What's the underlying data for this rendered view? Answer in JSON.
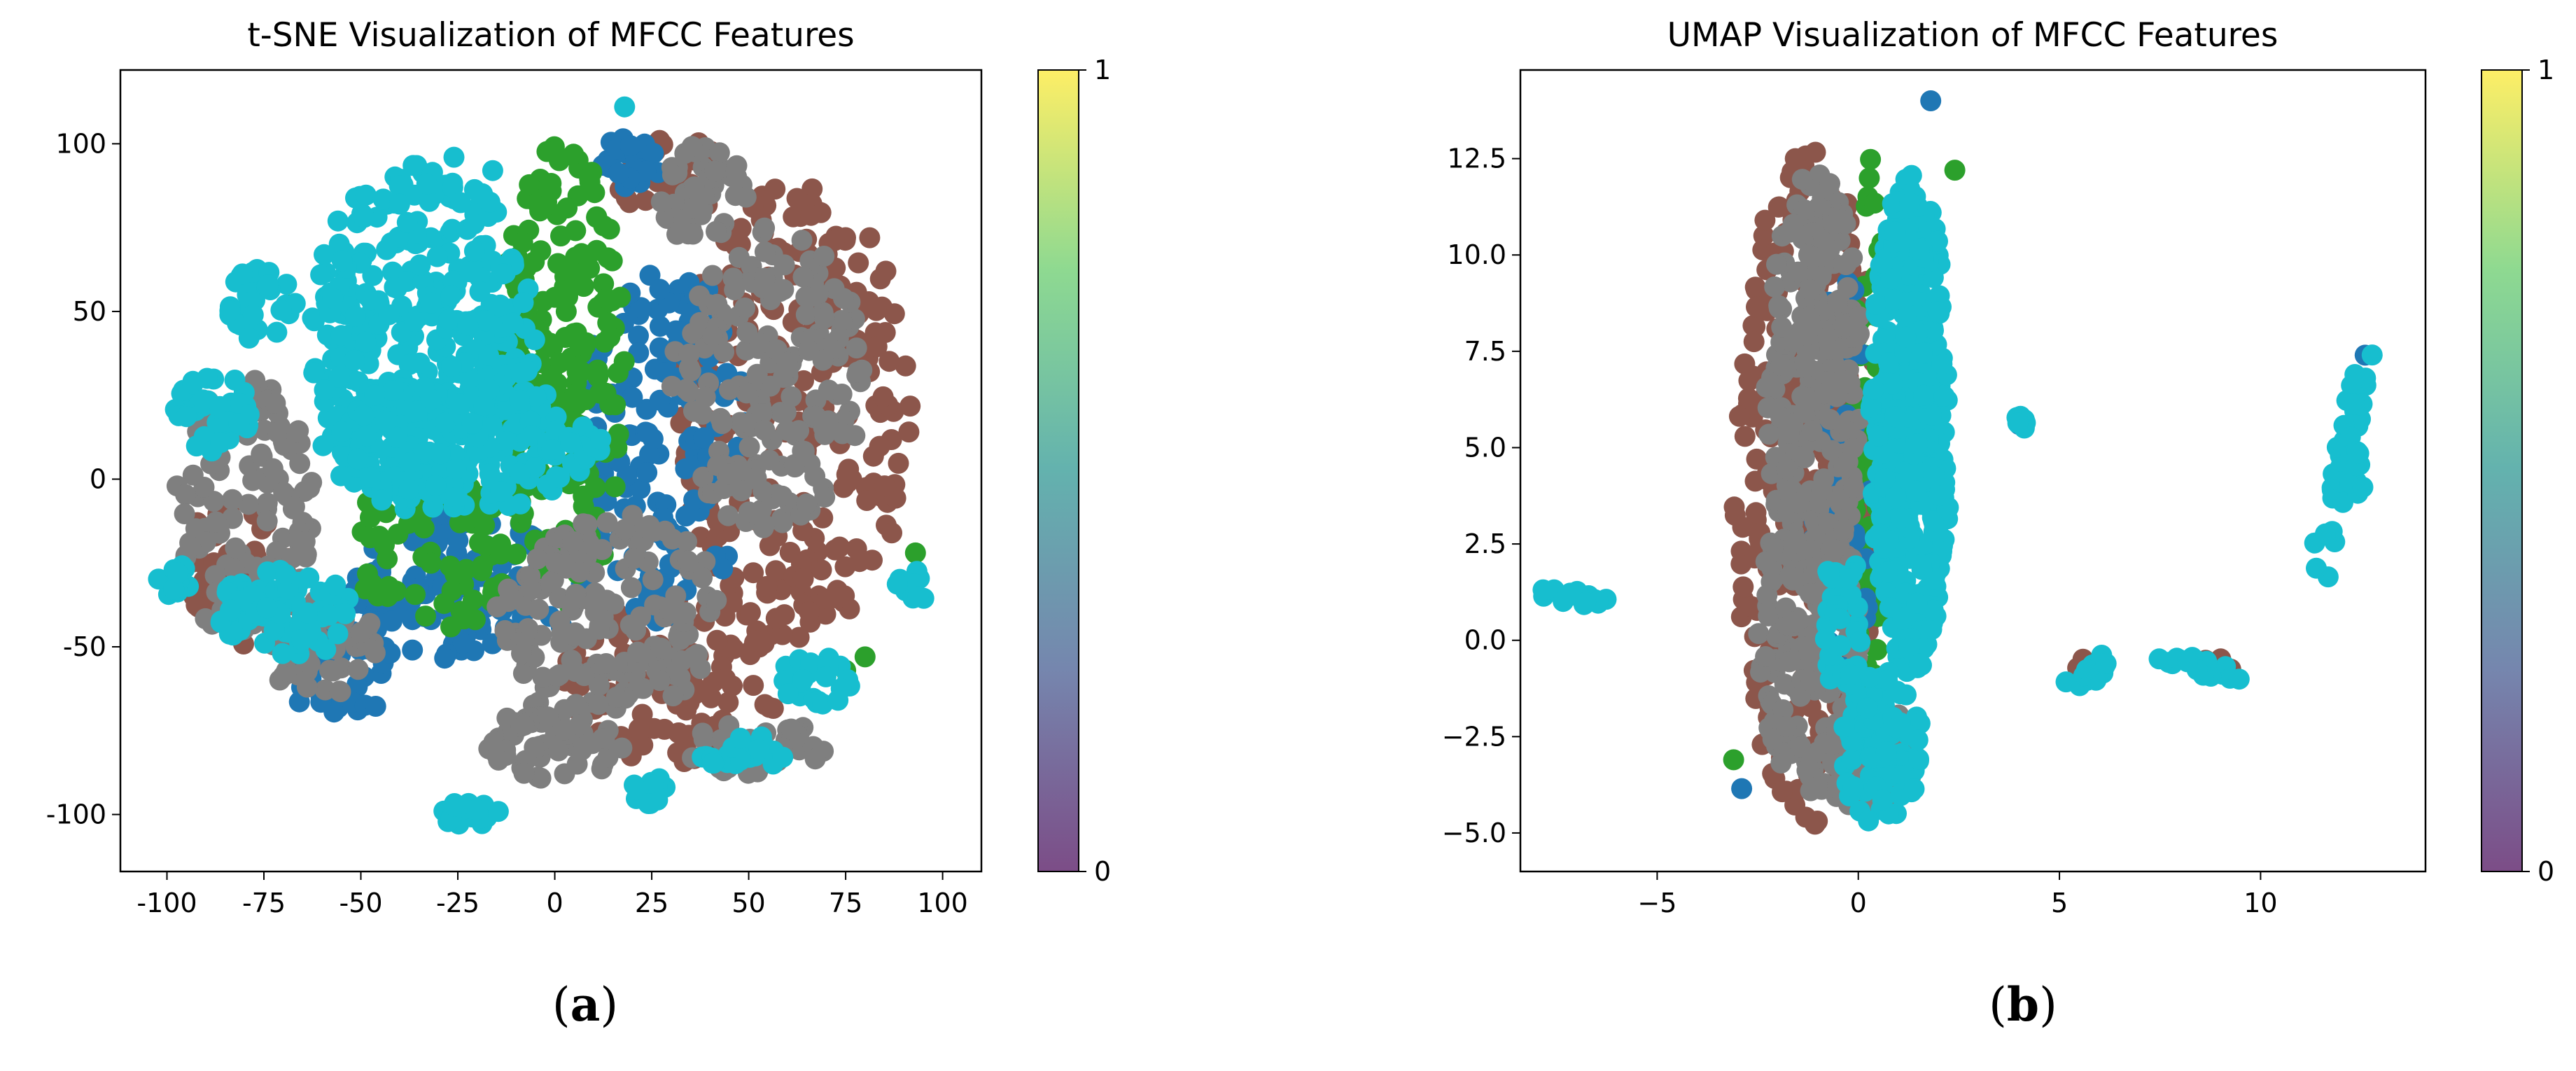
{
  "figure": {
    "panel_a_label": {
      "open": "(",
      "letter": "a",
      "close": ")"
    },
    "panel_b_label": {
      "open": "(",
      "letter": "b",
      "close": ")"
    }
  },
  "colors": {
    "blue": "#1f77b4",
    "green": "#2ca02c",
    "brown": "#8c564b",
    "gray": "#7f7f7f",
    "cyan": "#17becf",
    "viridis": [
      "#440154",
      "#3b528b",
      "#21918c",
      "#5ec962",
      "#fde725"
    ]
  },
  "chart_data": [
    {
      "type": "scatter",
      "title": "t-SNE Visualization of MFCC Features",
      "xlabel": "",
      "ylabel": "",
      "xlim": [
        -112,
        110
      ],
      "ylim": [
        -117,
        122
      ],
      "xticks": [
        -100,
        -75,
        -50,
        -25,
        0,
        25,
        50,
        75,
        100
      ],
      "yticks": [
        -100,
        -50,
        0,
        50,
        100
      ],
      "colorbar": {
        "min": 0,
        "max": 1,
        "ticks": [
          "0",
          "1"
        ],
        "cmap": "viridis",
        "alpha": 0.7
      },
      "series": [
        {
          "name": "class-brown",
          "color": "#8c564b",
          "regions": [
            {
              "type": "ellipse",
              "cx": 62,
              "cy": 20,
              "rx": 30,
              "ry": 68,
              "n": 260
            },
            {
              "type": "ellipse",
              "cx": 30,
              "cy": -60,
              "rx": 28,
              "ry": 25,
              "n": 110
            },
            {
              "type": "ellipse",
              "cx": -82,
              "cy": -28,
              "rx": 14,
              "ry": 22,
              "n": 40
            },
            {
              "type": "ellipse",
              "cx": 30,
              "cy": 90,
              "rx": 14,
              "ry": 12,
              "n": 30
            }
          ]
        },
        {
          "name": "class-blue",
          "color": "#1f77b4",
          "regions": [
            {
              "type": "ellipse",
              "cx": 28,
              "cy": 10,
              "rx": 22,
              "ry": 55,
              "n": 160
            },
            {
              "type": "ellipse",
              "cx": -22,
              "cy": -32,
              "rx": 30,
              "ry": 22,
              "n": 110
            },
            {
              "type": "ellipse",
              "cx": -55,
              "cy": -58,
              "rx": 14,
              "ry": 14,
              "n": 40
            },
            {
              "type": "ellipse",
              "cx": 20,
              "cy": 95,
              "rx": 10,
              "ry": 8,
              "n": 22
            }
          ]
        },
        {
          "name": "class-green",
          "color": "#2ca02c",
          "regions": [
            {
              "type": "ellipse",
              "cx": 2,
              "cy": 30,
              "rx": 16,
              "ry": 70,
              "n": 190
            },
            {
              "type": "ellipse",
              "cx": -30,
              "cy": -20,
              "rx": 22,
              "ry": 25,
              "n": 80
            },
            {
              "type": "points",
              "pts": [
                [
                  -47,
                  41
                ],
                [
                  80,
                  -53
                ],
                [
                  93,
                  -22
                ],
                [
                  -68,
                  52
                ],
                [
                  75,
                  -57
                ]
              ]
            }
          ]
        },
        {
          "name": "class-gray",
          "color": "#7f7f7f",
          "regions": [
            {
              "type": "ellipse",
              "cx": 55,
              "cy": 30,
              "rx": 25,
              "ry": 45,
              "n": 180
            },
            {
              "type": "ellipse",
              "cx": 15,
              "cy": -40,
              "rx": 30,
              "ry": 30,
              "n": 160
            },
            {
              "type": "ellipse",
              "cx": 0,
              "cy": -78,
              "rx": 18,
              "ry": 12,
              "n": 60
            },
            {
              "type": "ellipse",
              "cx": 38,
              "cy": 85,
              "rx": 12,
              "ry": 15,
              "n": 50
            },
            {
              "type": "ellipse",
              "cx": -80,
              "cy": -10,
              "rx": 18,
              "ry": 40,
              "n": 110
            },
            {
              "type": "ellipse",
              "cx": -60,
              "cy": -50,
              "rx": 15,
              "ry": 15,
              "n": 50
            },
            {
              "type": "ellipse",
              "cx": 52,
              "cy": -80,
              "rx": 18,
              "ry": 8,
              "n": 40
            }
          ]
        },
        {
          "name": "class-cyan",
          "color": "#17becf",
          "regions": [
            {
              "type": "ellipse",
              "cx": -35,
              "cy": 42,
              "rx": 30,
              "ry": 52,
              "n": 380
            },
            {
              "type": "ellipse",
              "cx": -25,
              "cy": 10,
              "rx": 35,
              "ry": 20,
              "n": 140
            },
            {
              "type": "ellipse",
              "cx": -70,
              "cy": -40,
              "rx": 18,
              "ry": 14,
              "n": 70
            },
            {
              "type": "ellipse",
              "cx": -88,
              "cy": 20,
              "rx": 10,
              "ry": 12,
              "n": 40
            },
            {
              "type": "ellipse",
              "cx": -75,
              "cy": 52,
              "rx": 10,
              "ry": 12,
              "n": 30
            },
            {
              "type": "ellipse",
              "cx": -22,
              "cy": -100,
              "rx": 8,
              "ry": 4,
              "n": 22
            },
            {
              "type": "ellipse",
              "cx": 25,
              "cy": -93,
              "rx": 6,
              "ry": 4,
              "n": 16
            },
            {
              "type": "ellipse",
              "cx": 48,
              "cy": -82,
              "rx": 12,
              "ry": 6,
              "n": 26
            },
            {
              "type": "ellipse",
              "cx": 68,
              "cy": -60,
              "rx": 10,
              "ry": 8,
              "n": 26
            },
            {
              "type": "ellipse",
              "cx": 92,
              "cy": -32,
              "rx": 4,
              "ry": 6,
              "n": 14
            },
            {
              "type": "ellipse",
              "cx": -98,
              "cy": -30,
              "rx": 5,
              "ry": 5,
              "n": 12
            },
            {
              "type": "ellipse",
              "cx": 5,
              "cy": 10,
              "rx": 8,
              "ry": 6,
              "n": 14
            },
            {
              "type": "points",
              "pts": [
                [
                  18,
                  111
                ],
                [
                  -26,
                  96
                ],
                [
                  -40,
                  82
                ],
                [
                  -16,
                  92
                ],
                [
                  -33,
                  88
                ]
              ]
            }
          ]
        }
      ]
    },
    {
      "type": "scatter",
      "title": "UMAP Visualization of MFCC Features",
      "xlabel": "",
      "ylabel": "",
      "xlim": [
        -8.4,
        14.1
      ],
      "ylim": [
        -6.0,
        14.8
      ],
      "xticks": [
        -5,
        0,
        5,
        10
      ],
      "yticks": [
        -5.0,
        -2.5,
        0.0,
        2.5,
        5.0,
        7.5,
        10.0,
        12.5
      ],
      "ytick_labels": [
        "−5.0",
        "−2.5",
        "0.0",
        "2.5",
        "5.0",
        "7.5",
        "10.0",
        "12.5"
      ],
      "xtick_labels": [
        "−5",
        "0",
        "5",
        "10"
      ],
      "colorbar": {
        "min": 0,
        "max": 1,
        "ticks": [
          "0",
          "1"
        ],
        "cmap": "viridis",
        "alpha": 0.7
      },
      "series": [
        {
          "name": "class-brown",
          "color": "#8c564b",
          "regions": [
            {
              "type": "ellipse",
              "cx": -1.2,
              "cy": 4.0,
              "rx": 1.9,
              "ry": 8.8,
              "n": 330
            },
            {
              "type": "ellipse",
              "cx": 9.0,
              "cy": -0.6,
              "rx": 0.4,
              "ry": 0.3,
              "n": 6
            },
            {
              "type": "ellipse",
              "cx": 5.8,
              "cy": -0.7,
              "rx": 0.4,
              "ry": 0.3,
              "n": 6
            }
          ]
        },
        {
          "name": "class-green",
          "color": "#2ca02c",
          "regions": [
            {
              "type": "ellipse",
              "cx": 0.3,
              "cy": 5.0,
              "rx": 0.45,
              "ry": 7.5,
              "n": 80
            },
            {
              "type": "points",
              "pts": [
                [
                  -3.1,
                  -3.1
                ],
                [
                  2.4,
                  12.2
                ]
              ]
            }
          ]
        },
        {
          "name": "class-blue",
          "color": "#1f77b4",
          "regions": [
            {
              "type": "ellipse",
              "cx": -0.4,
              "cy": 4.0,
              "rx": 0.8,
              "ry": 5.5,
              "n": 60
            },
            {
              "type": "points",
              "pts": [
                [
                  1.8,
                  14.0
                ],
                [
                  -2.9,
                  -3.85
                ],
                [
                  4.0,
                  5.6
                ],
                [
                  12.6,
                  7.4
                ]
              ]
            }
          ]
        },
        {
          "name": "class-gray",
          "color": "#7f7f7f",
          "regions": [
            {
              "type": "ellipse",
              "cx": -1.1,
              "cy": 6.8,
              "rx": 1.2,
              "ry": 5.5,
              "n": 240
            },
            {
              "type": "ellipse",
              "cx": -1.2,
              "cy": 0.0,
              "rx": 1.3,
              "ry": 4.0,
              "n": 160
            },
            {
              "type": "ellipse",
              "cx": 0.3,
              "cy": -3.0,
              "rx": 1.2,
              "ry": 1.6,
              "n": 60
            }
          ]
        },
        {
          "name": "class-cyan",
          "color": "#17becf",
          "regions": [
            {
              "type": "ellipse",
              "cx": 1.3,
              "cy": 5.6,
              "rx": 1.0,
              "ry": 6.5,
              "n": 420
            },
            {
              "type": "ellipse",
              "cx": 0.6,
              "cy": -2.8,
              "rx": 1.1,
              "ry": 2.0,
              "n": 90
            },
            {
              "type": "ellipse",
              "cx": -0.4,
              "cy": 0.5,
              "rx": 0.5,
              "ry": 2.0,
              "n": 40
            },
            {
              "type": "line",
              "from": [
                -7.8,
                1.3
              ],
              "to": [
                -6.2,
                1.0
              ],
              "spread": 0.2,
              "n": 14
            },
            {
              "type": "line",
              "from": [
                5.2,
                -1.3
              ],
              "to": [
                6.3,
                -0.5
              ],
              "spread": 0.2,
              "n": 14
            },
            {
              "type": "line",
              "from": [
                7.3,
                -0.4
              ],
              "to": [
                9.5,
                -0.9
              ],
              "spread": 0.2,
              "n": 20
            },
            {
              "type": "line",
              "from": [
                11.4,
                1.6
              ],
              "to": [
                12.6,
                7.4
              ],
              "spread": 0.25,
              "n": 42
            },
            {
              "type": "ellipse",
              "cx": 4.1,
              "cy": 5.7,
              "rx": 0.2,
              "ry": 0.2,
              "n": 6
            },
            {
              "type": "ellipse",
              "cx": 12.2,
              "cy": 4.3,
              "rx": 0.4,
              "ry": 0.8,
              "n": 12
            }
          ]
        }
      ]
    }
  ]
}
